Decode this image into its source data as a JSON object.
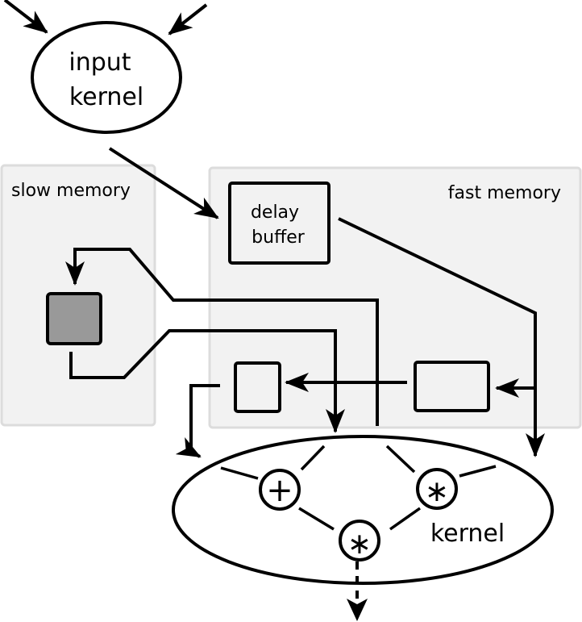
{
  "input_kernel": {
    "line1": "input",
    "line2": "kernel"
  },
  "slow_memory": {
    "label": "slow memory"
  },
  "fast_memory": {
    "label": "fast memory"
  },
  "delay_buffer": {
    "line1": "delay",
    "line2": "buffer"
  },
  "kernel": {
    "label": "kernel"
  },
  "ops": {
    "plus": "+",
    "times_right": "∗",
    "times_bottom": "∗"
  },
  "colors": {
    "panel": "#f2f2f2",
    "slow_block": "#999999",
    "ink": "#000000"
  }
}
